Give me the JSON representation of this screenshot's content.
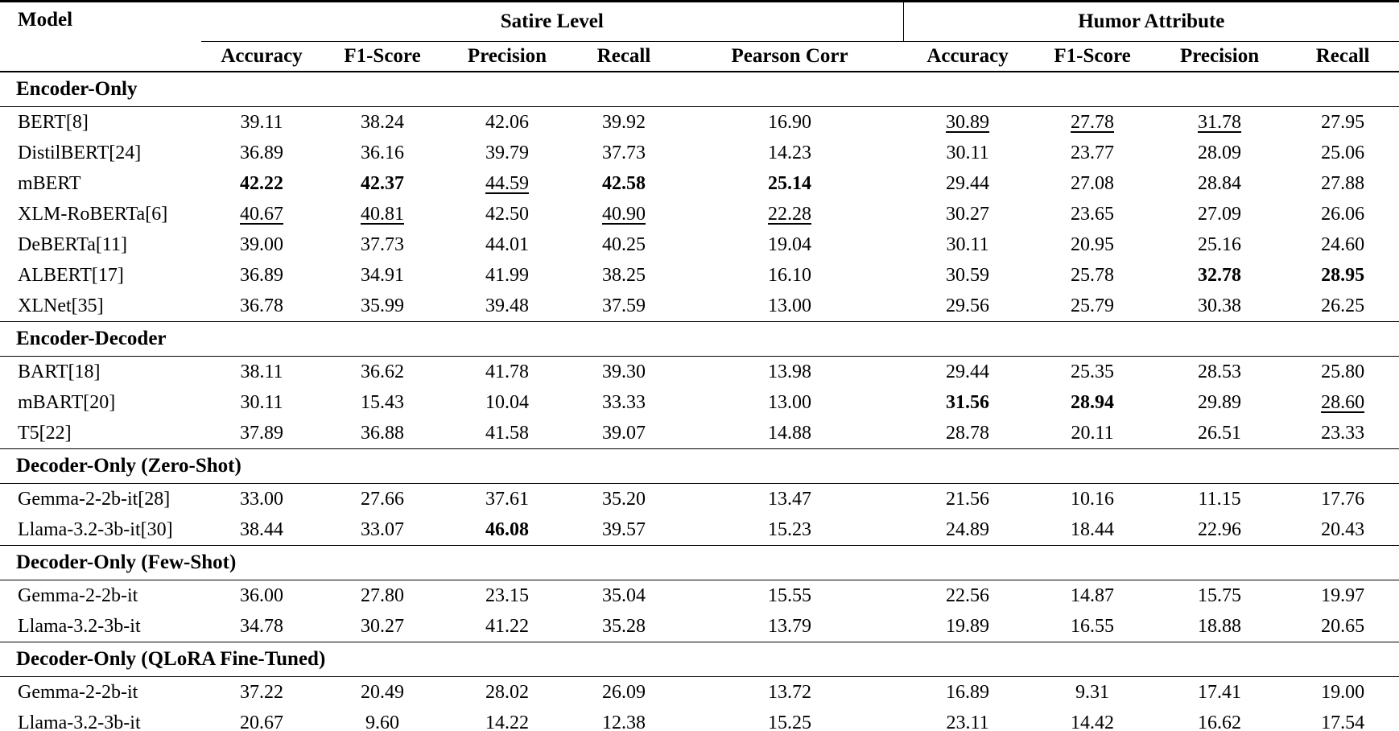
{
  "colors": {
    "text": "#000000",
    "background": "#ffffff",
    "rule": "#000000"
  },
  "header": {
    "model_label": "Model",
    "groups": [
      {
        "label": "Satire Level",
        "columns": [
          "Accuracy",
          "F1-Score",
          "Precision",
          "Recall",
          "Pearson Corr"
        ]
      },
      {
        "label": "Humor Attribute",
        "columns": [
          "Accuracy",
          "F1-Score",
          "Precision",
          "Recall"
        ]
      }
    ]
  },
  "sections": [
    {
      "title": "Encoder-Only",
      "rows": [
        {
          "model": "BERT[8]",
          "values": [
            "39.11",
            "38.24",
            "42.06",
            "39.92",
            "16.90",
            "30.89",
            "27.78",
            "31.78",
            "27.95"
          ],
          "styles": [
            "",
            "",
            "",
            "",
            "",
            "u",
            "u",
            "u",
            ""
          ]
        },
        {
          "model": "DistilBERT[24]",
          "values": [
            "36.89",
            "36.16",
            "39.79",
            "37.73",
            "14.23",
            "30.11",
            "23.77",
            "28.09",
            "25.06"
          ],
          "styles": [
            "",
            "",
            "",
            "",
            "",
            "",
            "",
            "",
            ""
          ]
        },
        {
          "model": "mBERT",
          "values": [
            "42.22",
            "42.37",
            "44.59",
            "42.58",
            "25.14",
            "29.44",
            "27.08",
            "28.84",
            "27.88"
          ],
          "styles": [
            "b",
            "b",
            "u",
            "b",
            "b",
            "",
            "",
            "",
            ""
          ]
        },
        {
          "model": "XLM-RoBERTa[6]",
          "values": [
            "40.67",
            "40.81",
            "42.50",
            "40.90",
            "22.28",
            "30.27",
            "23.65",
            "27.09",
            "26.06"
          ],
          "styles": [
            "u",
            "u",
            "",
            "u",
            "u",
            "",
            "",
            "",
            ""
          ]
        },
        {
          "model": "DeBERTa[11]",
          "values": [
            "39.00",
            "37.73",
            "44.01",
            "40.25",
            "19.04",
            "30.11",
            "20.95",
            "25.16",
            "24.60"
          ],
          "styles": [
            "",
            "",
            "",
            "",
            "",
            "",
            "",
            "",
            ""
          ]
        },
        {
          "model": "ALBERT[17]",
          "values": [
            "36.89",
            "34.91",
            "41.99",
            "38.25",
            "16.10",
            "30.59",
            "25.78",
            "32.78",
            "28.95"
          ],
          "styles": [
            "",
            "",
            "",
            "",
            "",
            "",
            "",
            "b",
            "b"
          ]
        },
        {
          "model": "XLNet[35]",
          "values": [
            "36.78",
            "35.99",
            "39.48",
            "37.59",
            "13.00",
            "29.56",
            "25.79",
            "30.38",
            "26.25"
          ],
          "styles": [
            "",
            "",
            "",
            "",
            "",
            "",
            "",
            "",
            ""
          ]
        }
      ]
    },
    {
      "title": "Encoder-Decoder",
      "rows": [
        {
          "model": "BART[18]",
          "values": [
            "38.11",
            "36.62",
            "41.78",
            "39.30",
            "13.98",
            "29.44",
            "25.35",
            "28.53",
            "25.80"
          ],
          "styles": [
            "",
            "",
            "",
            "",
            "",
            "",
            "",
            "",
            ""
          ]
        },
        {
          "model": "mBART[20]",
          "values": [
            "30.11",
            "15.43",
            "10.04",
            "33.33",
            "13.00",
            "31.56",
            "28.94",
            "29.89",
            "28.60"
          ],
          "styles": [
            "",
            "",
            "",
            "",
            "",
            "b",
            "b",
            "",
            "u"
          ]
        },
        {
          "model": "T5[22]",
          "values": [
            "37.89",
            "36.88",
            "41.58",
            "39.07",
            "14.88",
            "28.78",
            "20.11",
            "26.51",
            "23.33"
          ],
          "styles": [
            "",
            "",
            "",
            "",
            "",
            "",
            "",
            "",
            ""
          ]
        }
      ]
    },
    {
      "title": "Decoder-Only (Zero-Shot)",
      "rows": [
        {
          "model": "Gemma-2-2b-it[28]",
          "values": [
            "33.00",
            "27.66",
            "37.61",
            "35.20",
            "13.47",
            "21.56",
            "10.16",
            "11.15",
            "17.76"
          ],
          "styles": [
            "",
            "",
            "",
            "",
            "",
            "",
            "",
            "",
            ""
          ]
        },
        {
          "model": "Llama-3.2-3b-it[30]",
          "values": [
            "38.44",
            "33.07",
            "46.08",
            "39.57",
            "15.23",
            "24.89",
            "18.44",
            "22.96",
            "20.43"
          ],
          "styles": [
            "",
            "",
            "b",
            "",
            "",
            "",
            "",
            "",
            ""
          ]
        }
      ]
    },
    {
      "title": "Decoder-Only (Few-Shot)",
      "rows": [
        {
          "model": "Gemma-2-2b-it",
          "values": [
            "36.00",
            "27.80",
            "23.15",
            "35.04",
            "15.55",
            "22.56",
            "14.87",
            "15.75",
            "19.97"
          ],
          "styles": [
            "",
            "",
            "",
            "",
            "",
            "",
            "",
            "",
            ""
          ]
        },
        {
          "model": "Llama-3.2-3b-it",
          "values": [
            "34.78",
            "30.27",
            "41.22",
            "35.28",
            "13.79",
            "19.89",
            "16.55",
            "18.88",
            "20.65"
          ],
          "styles": [
            "",
            "",
            "",
            "",
            "",
            "",
            "",
            "",
            ""
          ]
        }
      ]
    },
    {
      "title": "Decoder-Only (QLoRA Fine-Tuned)",
      "rows": [
        {
          "model": "Gemma-2-2b-it",
          "values": [
            "37.22",
            "20.49",
            "28.02",
            "26.09",
            "13.72",
            "16.89",
            "9.31",
            "17.41",
            "19.00"
          ],
          "styles": [
            "",
            "",
            "",
            "",
            "",
            "",
            "",
            "",
            ""
          ]
        },
        {
          "model": "Llama-3.2-3b-it",
          "values": [
            "20.67",
            "9.60",
            "14.22",
            "12.38",
            "15.25",
            "23.11",
            "14.42",
            "16.62",
            "17.54"
          ],
          "styles": [
            "",
            "",
            "",
            "",
            "",
            "",
            "",
            "",
            ""
          ]
        }
      ]
    }
  ]
}
